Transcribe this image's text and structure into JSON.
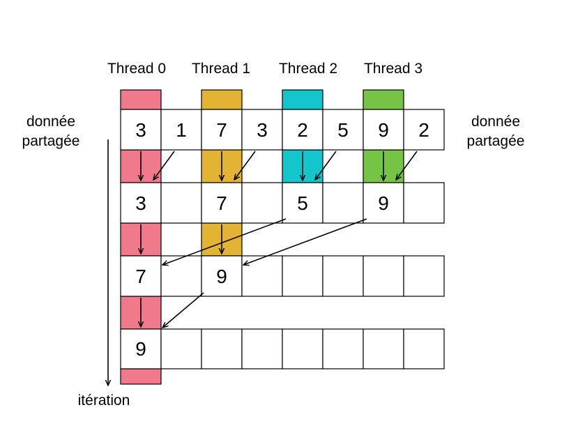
{
  "threads": [
    {
      "label": "Thread 0",
      "color": "#f07a8c"
    },
    {
      "label": "Thread 1",
      "color": "#e3b433"
    },
    {
      "label": "Thread 2",
      "color": "#13c6cc"
    },
    {
      "label": "Thread 3",
      "color": "#77c346"
    }
  ],
  "shared_label_left": [
    "donnée",
    "partagée"
  ],
  "shared_label_right": [
    "donnée",
    "partagée"
  ],
  "iteration_label": "itération",
  "rows": [
    [
      "3",
      "1",
      "7",
      "3",
      "2",
      "5",
      "9",
      "2"
    ],
    [
      "3",
      "",
      "7",
      "",
      "5",
      "",
      "9",
      ""
    ],
    [
      "7",
      "",
      "9",
      "",
      "",
      "",
      "",
      ""
    ],
    [
      "9",
      "",
      "",
      "",
      "",
      "",
      "",
      ""
    ]
  ]
}
